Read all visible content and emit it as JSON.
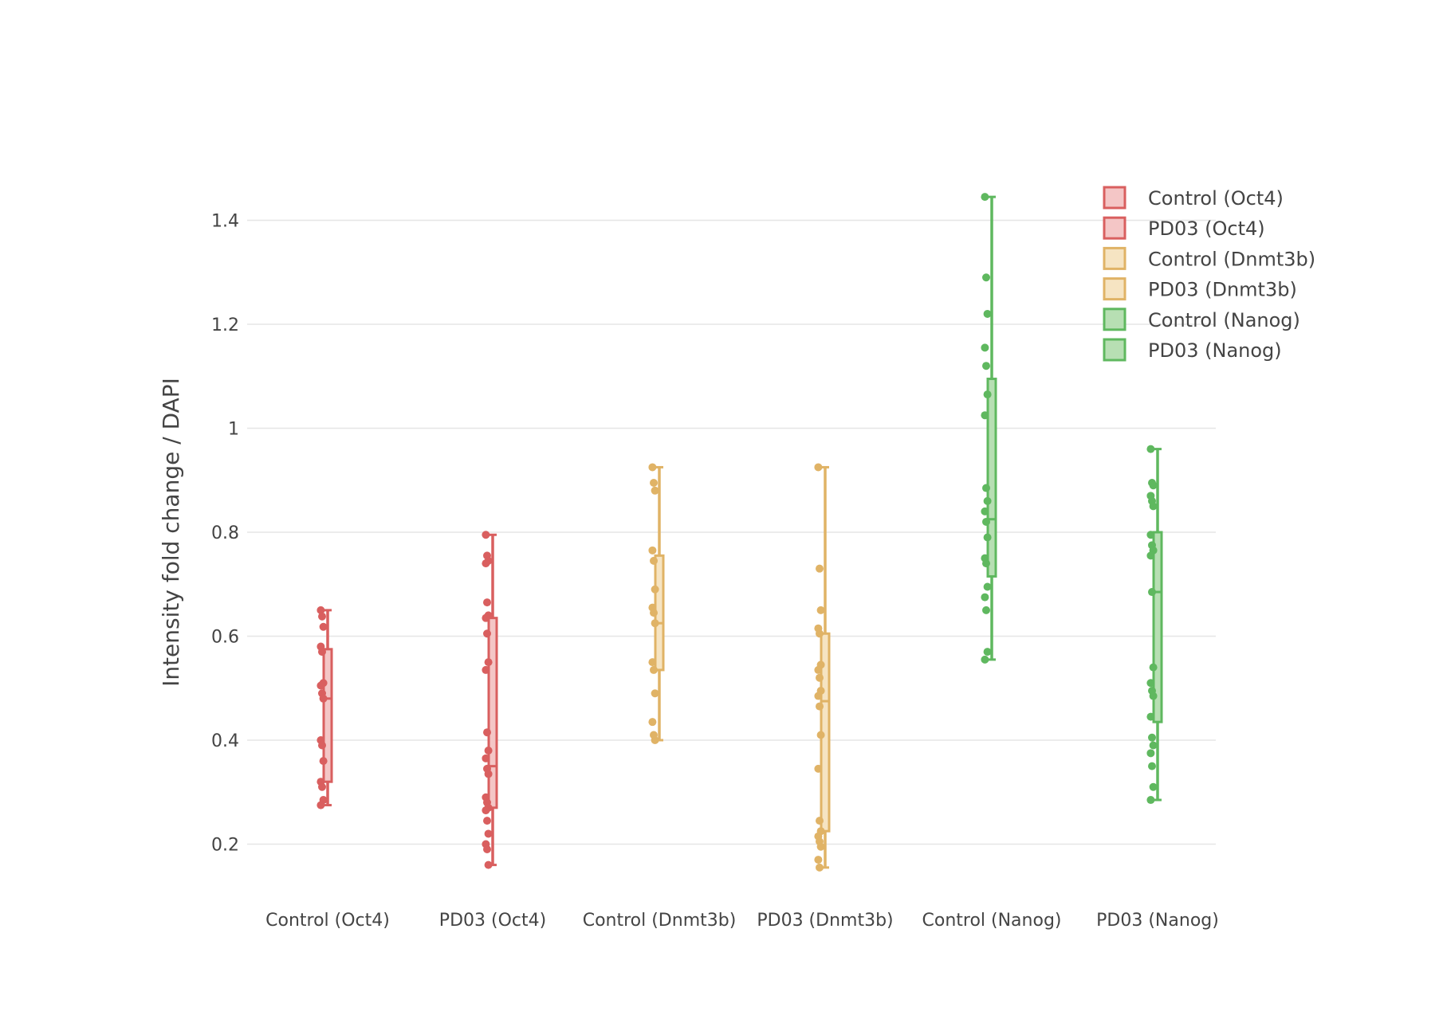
{
  "chart_data": {
    "type": "box",
    "title": "",
    "xlabel": "",
    "ylabel": "Intensity fold change / DAPI",
    "ylim": [
      0.1,
      1.49
    ],
    "y_ticks": [
      0.2,
      0.4,
      0.6,
      0.8,
      1,
      1.2,
      1.4
    ],
    "y_tick_labels": [
      "0.2",
      "0.4",
      "0.6",
      "0.8",
      "1",
      "1.2",
      "1.4"
    ],
    "grid": true,
    "legend_position": "top-right",
    "categories": [
      "Control (Oct4)",
      "PD03 (Oct4)",
      "Control (Dnmt3b)",
      "PD03 (Dnmt3b)",
      "Control (Nanog)",
      "PD03 (Nanog)"
    ],
    "series": [
      {
        "name": "Control (Oct4)",
        "color": "#d95f5f",
        "fill": "#f4c6c6",
        "min": 0.275,
        "q1": 0.32,
        "median": 0.48,
        "q3": 0.575,
        "max": 0.65,
        "points": [
          0.65,
          0.638,
          0.618,
          0.58,
          0.57,
          0.51,
          0.505,
          0.49,
          0.48,
          0.4,
          0.39,
          0.36,
          0.32,
          0.31,
          0.285,
          0.275
        ]
      },
      {
        "name": "PD03 (Oct4)",
        "color": "#d95f5f",
        "fill": "#f4c6c6",
        "min": 0.16,
        "q1": 0.27,
        "median": 0.35,
        "q3": 0.635,
        "max": 0.795,
        "points": [
          0.795,
          0.755,
          0.745,
          0.74,
          0.665,
          0.64,
          0.635,
          0.605,
          0.55,
          0.535,
          0.415,
          0.38,
          0.365,
          0.345,
          0.335,
          0.29,
          0.28,
          0.27,
          0.265,
          0.245,
          0.22,
          0.2,
          0.19,
          0.16
        ]
      },
      {
        "name": "Control (Dnmt3b)",
        "color": "#e0b366",
        "fill": "#f6e4c2",
        "min": 0.4,
        "q1": 0.535,
        "median": 0.625,
        "q3": 0.755,
        "max": 0.925,
        "points": [
          0.925,
          0.895,
          0.88,
          0.765,
          0.745,
          0.69,
          0.655,
          0.645,
          0.625,
          0.55,
          0.535,
          0.49,
          0.435,
          0.41,
          0.4
        ]
      },
      {
        "name": "PD03 (Dnmt3b)",
        "color": "#e0b366",
        "fill": "#f6e4c2",
        "min": 0.155,
        "q1": 0.225,
        "median": 0.475,
        "q3": 0.605,
        "max": 0.925,
        "points": [
          0.925,
          0.73,
          0.65,
          0.615,
          0.605,
          0.545,
          0.535,
          0.52,
          0.495,
          0.485,
          0.465,
          0.41,
          0.345,
          0.245,
          0.225,
          0.215,
          0.205,
          0.195,
          0.17,
          0.155
        ]
      },
      {
        "name": "Control (Nanog)",
        "color": "#5fb85f",
        "fill": "#b7dfb3",
        "min": 0.555,
        "q1": 0.715,
        "median": 0.825,
        "q3": 1.095,
        "max": 1.445,
        "points": [
          1.445,
          1.29,
          1.22,
          1.155,
          1.12,
          1.065,
          1.025,
          0.885,
          0.86,
          0.84,
          0.82,
          0.79,
          0.75,
          0.74,
          0.695,
          0.675,
          0.65,
          0.57,
          0.555
        ]
      },
      {
        "name": "PD03 (Nanog)",
        "color": "#5fb85f",
        "fill": "#b7dfb3",
        "min": 0.285,
        "q1": 0.435,
        "median": 0.685,
        "q3": 0.8,
        "max": 0.96,
        "points": [
          0.96,
          0.895,
          0.89,
          0.87,
          0.86,
          0.85,
          0.795,
          0.775,
          0.765,
          0.755,
          0.685,
          0.54,
          0.51,
          0.495,
          0.485,
          0.445,
          0.405,
          0.39,
          0.375,
          0.35,
          0.31,
          0.285
        ]
      }
    ]
  }
}
